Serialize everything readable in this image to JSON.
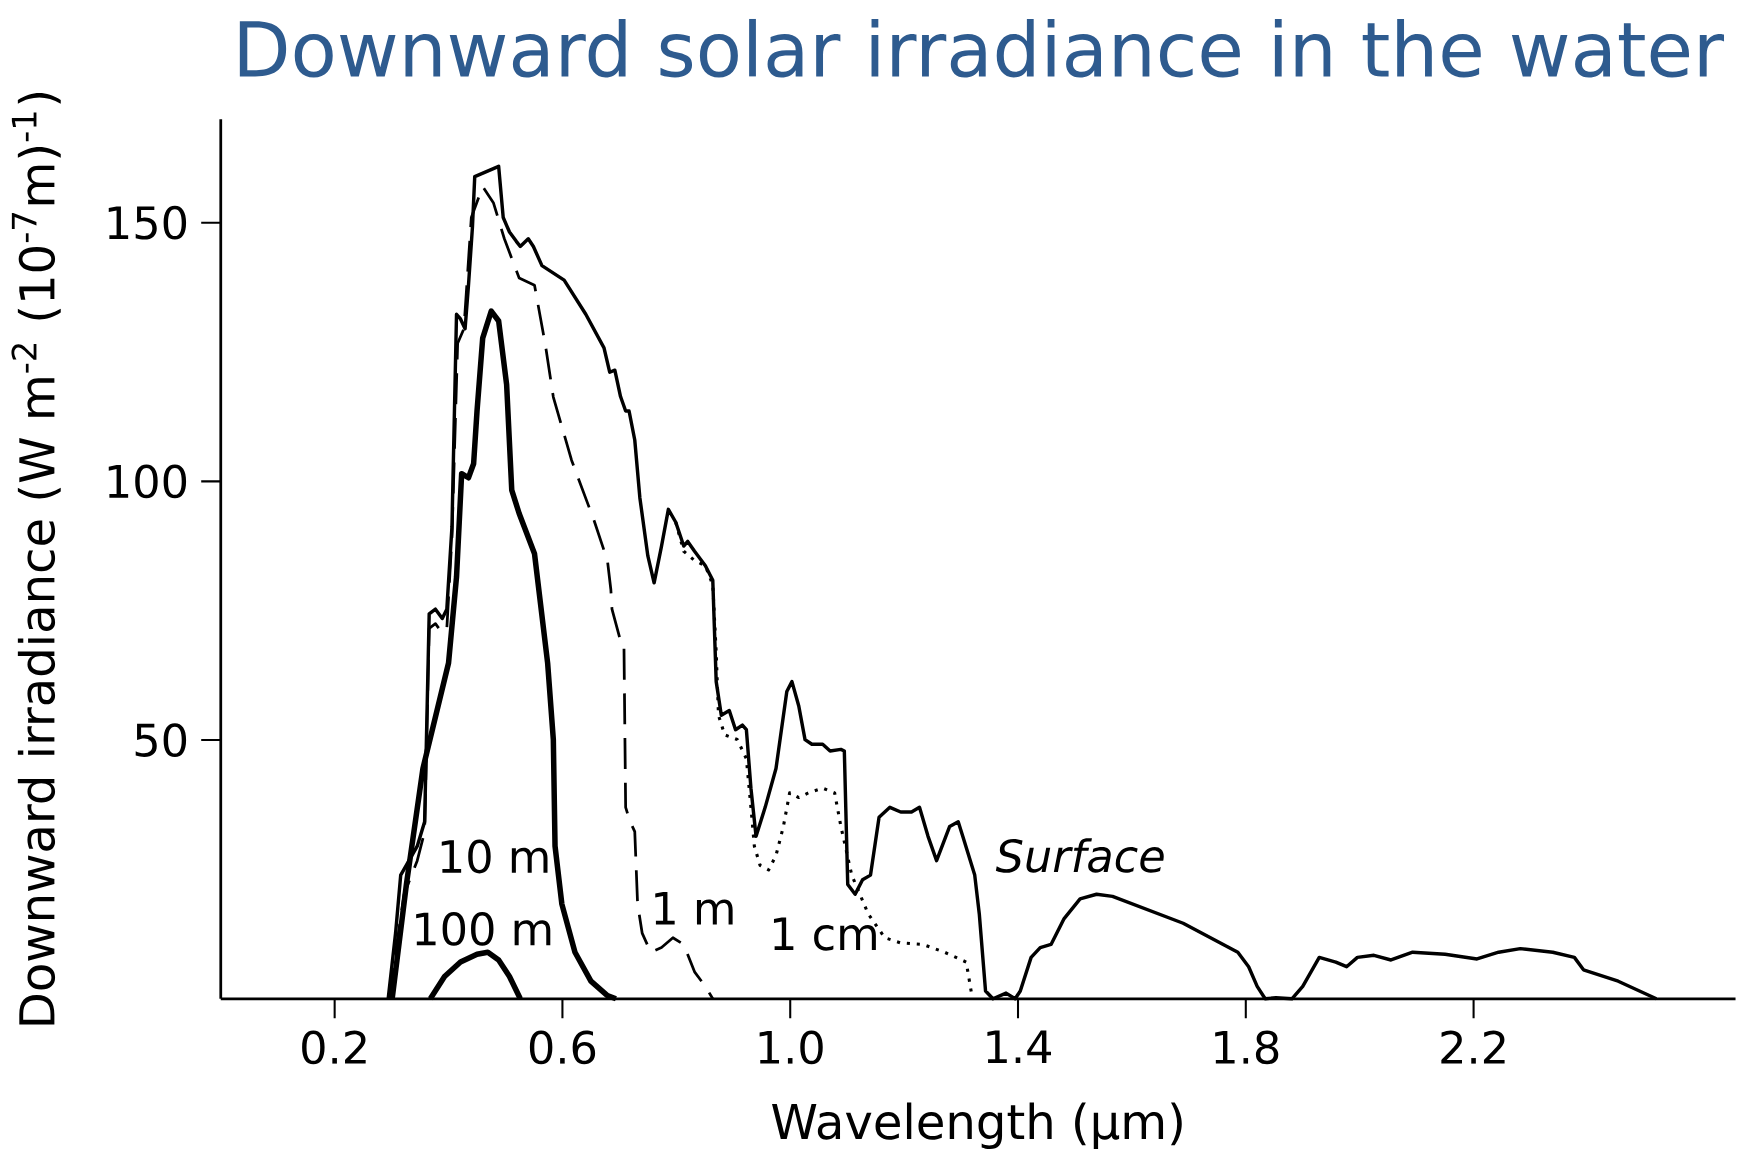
{
  "chart_data": {
    "type": "line",
    "title": "Downward solar irradiance in the water",
    "xlabel": "Wavelength (µm)",
    "ylabel": "Downward irradiance (W m$^{-2}$ (10$^{-7}$m)$^{-1}$)",
    "xlim": [
      0,
      2.66
    ],
    "ylim": [
      0,
      170
    ],
    "xticks": [
      0.2,
      0.6,
      {
        "value": 1.0,
        "label": "1.0"
      },
      1.4,
      1.8,
      2.2
    ],
    "yticks": [
      50,
      100,
      150
    ],
    "series": [
      {
        "name": "Surface",
        "color": "#000000",
        "line_style": "solid",
        "x": [
          0.294,
          0.307,
          0.316,
          0.345,
          0.358,
          0.366,
          0.377,
          0.389,
          0.397,
          0.406,
          0.414,
          0.421,
          0.429,
          0.435,
          0.442,
          0.446,
          0.488,
          0.496,
          0.507,
          0.519,
          0.526,
          0.54,
          0.549,
          0.564,
          0.603,
          0.641,
          0.673,
          0.683,
          0.692,
          0.702,
          0.711,
          0.717,
          0.727,
          0.736,
          0.75,
          0.761,
          0.774,
          0.786,
          0.799,
          0.813,
          0.82,
          0.832,
          0.851,
          0.864,
          0.87,
          0.879,
          0.893,
          0.904,
          0.916,
          0.923,
          0.931,
          0.94,
          0.956,
          0.975,
          0.994,
          1.003,
          1.015,
          1.026,
          1.038,
          1.057,
          1.07,
          1.089,
          1.095,
          1.101,
          1.114,
          1.127,
          1.141,
          1.156,
          1.175,
          1.194,
          1.213,
          1.227,
          1.242,
          1.257,
          1.28,
          1.295,
          1.303,
          1.324,
          1.332,
          1.343,
          1.356,
          1.379,
          1.395,
          1.404,
          1.423,
          1.439,
          1.458,
          1.481,
          1.509,
          1.538,
          1.566,
          1.69,
          1.786,
          1.805,
          1.82,
          1.834,
          1.853,
          1.881,
          1.9,
          1.929,
          1.958,
          1.977,
          1.996,
          2.025,
          2.055,
          2.093,
          2.15,
          2.206,
          2.244,
          2.282,
          2.339,
          2.377,
          2.393,
          2.454,
          2.521
        ],
        "values": [
          0,
          12.7,
          23.9,
          29.5,
          34.2,
          74.4,
          75.3,
          73.5,
          75.3,
          91.2,
          132.3,
          131.4,
          129.5,
          137.9,
          149.2,
          158.9,
          160.9,
          151.0,
          148.2,
          146.4,
          145.4,
          146.9,
          145.4,
          141.7,
          138.9,
          132.3,
          125.8,
          121.1,
          121.5,
          116.4,
          113.6,
          113.6,
          108.0,
          96.8,
          85.6,
          80.4,
          87.5,
          94.6,
          92.1,
          87.5,
          88.4,
          86.5,
          83.7,
          80.9,
          61.3,
          54.8,
          55.7,
          52.0,
          52.9,
          52.0,
          40.7,
          31.4,
          37.0,
          44.5,
          59.4,
          61.3,
          56.6,
          50.1,
          49.2,
          49.2,
          47.9,
          48.2,
          47.9,
          22.1,
          20.2,
          23.0,
          23.9,
          35.1,
          37.0,
          36.1,
          36.1,
          37.0,
          31.4,
          26.7,
          33.3,
          34.2,
          31.4,
          23.9,
          16.4,
          1.5,
          0,
          1.1,
          0,
          1.5,
          8.0,
          9.9,
          10.5,
          15.5,
          19.3,
          20.2,
          19.8,
          14.6,
          9.0,
          6.2,
          2.4,
          0,
          0.2,
          0,
          2.4,
          8.0,
          7.1,
          6.2,
          8.0,
          8.4,
          7.5,
          9.0,
          8.6,
          7.7,
          9.0,
          9.7,
          9.0,
          8.0,
          5.6,
          3.4,
          0
        ]
      },
      {
        "name": "1 cm",
        "color": "#000000",
        "line_style": "dotted",
        "x": [
          0.799,
          0.813,
          0.832,
          0.851,
          0.864,
          0.87,
          0.874,
          0.885,
          0.907,
          0.923,
          0.931,
          0.937,
          0.947,
          0.962,
          0.975,
          0.988,
          0.999,
          1.015,
          1.032,
          1.057,
          1.078,
          1.089,
          1.108,
          1.137,
          1.166,
          1.194,
          1.233,
          1.271,
          1.309,
          1.32
        ],
        "values": [
          92.1,
          86.5,
          84.7,
          83.7,
          80.0,
          66.9,
          54.8,
          51.0,
          50.1,
          46.4,
          37.0,
          29.5,
          25.8,
          24.9,
          27.7,
          33.3,
          39.8,
          38.9,
          39.8,
          40.7,
          39.8,
          33.3,
          23.9,
          16.4,
          11.8,
          10.8,
          10.5,
          9.0,
          7.1,
          0
        ]
      },
      {
        "name": "1 m",
        "color": "#000000",
        "line_style": "dashed",
        "x": [
          0.297,
          0.307,
          0.322,
          0.345,
          0.358,
          0.366,
          0.377,
          0.389,
          0.397,
          0.406,
          0.416,
          0.427,
          0.44,
          0.46,
          0.479,
          0.498,
          0.524,
          0.551,
          0.57,
          0.584,
          0.616,
          0.656,
          0.679,
          0.685,
          0.687,
          0.702,
          0.708,
          0.711,
          0.719,
          0.727,
          0.732,
          0.74,
          0.755,
          0.774,
          0.794,
          0.813,
          0.832,
          0.851,
          0.864
        ],
        "values": [
          0,
          9.0,
          20.2,
          26.7,
          32.3,
          71.6,
          72.5,
          70.7,
          71.6,
          89.3,
          126.7,
          129.5,
          151.0,
          157.0,
          153.8,
          146.9,
          139.3,
          137.9,
          126.4,
          116.3,
          104.1,
          92.3,
          84.7,
          79.1,
          75.3,
          69.2,
          68.8,
          37.0,
          34.2,
          32.3,
          18.3,
          12.7,
          9.0,
          9.9,
          11.8,
          10.5,
          5.2,
          2.4,
          0
        ]
      },
      {
        "name": "10 m",
        "color": "#000000",
        "line_style": "solid",
        "x": [
          0.301,
          0.326,
          0.355,
          0.4,
          0.414,
          0.423,
          0.435,
          0.444,
          0.45,
          0.46,
          0.475,
          0.488,
          0.502,
          0.511,
          0.524,
          0.551,
          0.574,
          0.584,
          0.587,
          0.599,
          0.622,
          0.65,
          0.679,
          0.694
        ],
        "values": [
          0,
          22.1,
          44.5,
          64.9,
          81.5,
          101.5,
          100.7,
          103.4,
          113.6,
          127.7,
          132.9,
          131.0,
          118.7,
          98.3,
          93.8,
          86.0,
          64.9,
          50.1,
          29.5,
          18.3,
          9.0,
          3.4,
          0.6,
          0
        ]
      },
      {
        "name": "100 m",
        "color": "#000000",
        "line_style": "solid",
        "x": [
          0.368,
          0.393,
          0.421,
          0.45,
          0.469,
          0.488,
          0.507,
          0.526
        ],
        "values": [
          0,
          4.3,
          7.1,
          8.6,
          9.0,
          7.5,
          4.3,
          0
        ]
      }
    ]
  }
}
